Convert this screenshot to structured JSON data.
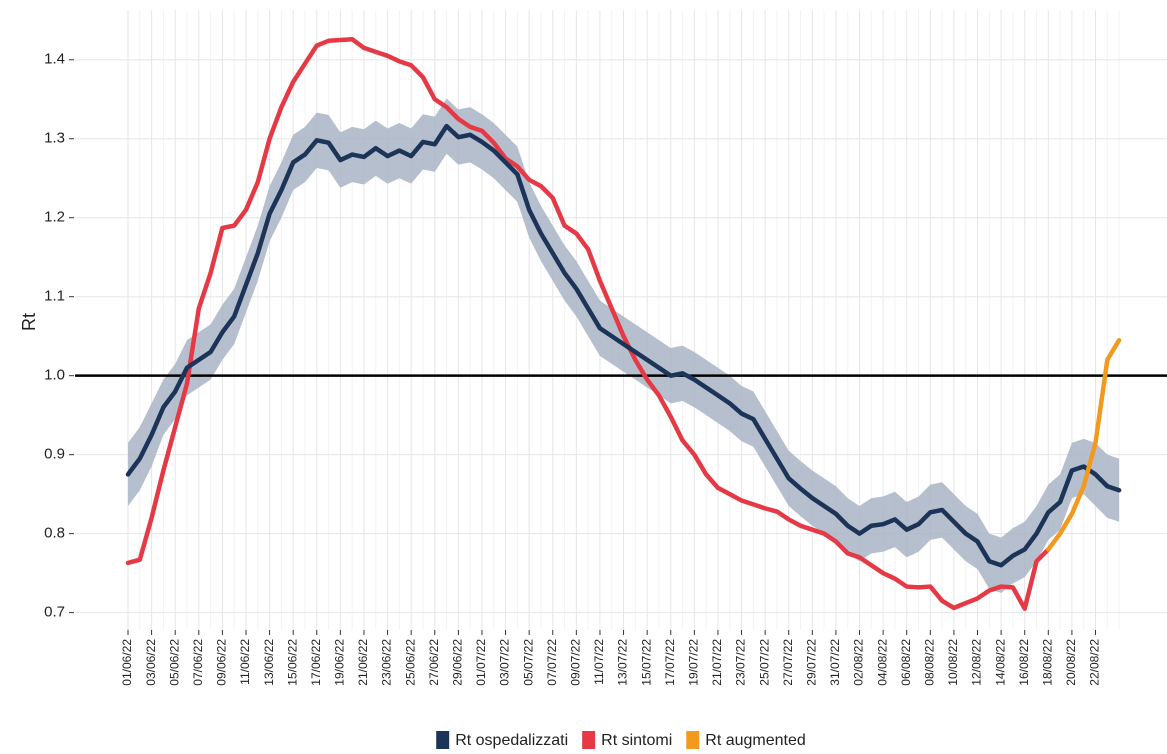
{
  "chart_data": {
    "type": "line",
    "y_label": "Rt",
    "categories": [
      "01/06/22",
      null,
      "03/06/22",
      null,
      "05/06/22",
      null,
      "07/06/22",
      null,
      "09/06/22",
      null,
      "11/06/22",
      null,
      "13/06/22",
      null,
      "15/06/22",
      null,
      "17/06/22",
      null,
      "19/06/22",
      null,
      "21/06/22",
      null,
      "23/06/22",
      null,
      "25/06/22",
      null,
      "27/06/22",
      null,
      "29/06/22",
      null,
      "01/07/22",
      null,
      "03/07/22",
      null,
      "05/07/22",
      null,
      "07/07/22",
      null,
      "09/07/22",
      null,
      "11/07/22",
      null,
      "13/07/22",
      null,
      "15/07/22",
      null,
      "17/07/22",
      null,
      "19/07/22",
      null,
      "21/07/22",
      null,
      "23/07/22",
      null,
      "25/07/22",
      null,
      "27/07/22",
      null,
      "29/07/22",
      null,
      "31/07/22",
      null,
      "02/08/22",
      null,
      "04/08/22",
      null,
      "06/08/22",
      null,
      "08/08/22",
      null,
      "10/08/22",
      null,
      "12/08/22",
      null,
      "14/08/22",
      null,
      "16/08/22",
      null,
      "18/08/22",
      null,
      "20/08/22",
      null,
      "22/08/22",
      null,
      null
    ],
    "series": [
      {
        "name": "Rt ospedalizzati",
        "color": "#1c3458",
        "band_color": "#a9b4c5",
        "values": [
          0.875,
          0.895,
          0.925,
          0.96,
          0.98,
          1.01,
          1.02,
          1.03,
          1.055,
          1.075,
          1.115,
          1.155,
          1.205,
          1.235,
          1.27,
          1.28,
          1.298,
          1.295,
          1.273,
          1.28,
          1.277,
          1.288,
          1.278,
          1.285,
          1.278,
          1.296,
          1.293,
          1.316,
          1.302,
          1.305,
          1.296,
          1.285,
          1.27,
          1.255,
          1.21,
          1.18,
          1.155,
          1.13,
          1.11,
          1.085,
          1.06,
          1.05,
          1.04,
          1.03,
          1.02,
          1.01,
          1.0,
          1.003,
          0.995,
          0.985,
          0.975,
          0.965,
          0.952,
          0.945,
          0.92,
          0.895,
          0.87,
          0.857,
          0.845,
          0.835,
          0.825,
          0.81,
          0.8,
          0.81,
          0.812,
          0.818,
          0.805,
          0.812,
          0.827,
          0.83,
          0.815,
          0.8,
          0.79,
          0.765,
          0.76,
          0.772,
          0.78,
          0.8,
          0.827,
          0.84,
          0.88,
          0.885,
          0.875,
          0.86,
          0.855
        ],
        "lower": [
          0.835,
          0.855,
          0.885,
          0.925,
          0.945,
          0.975,
          0.985,
          0.995,
          1.02,
          1.04,
          1.08,
          1.12,
          1.17,
          1.2,
          1.235,
          1.245,
          1.263,
          1.26,
          1.238,
          1.245,
          1.242,
          1.253,
          1.243,
          1.25,
          1.243,
          1.261,
          1.258,
          1.281,
          1.267,
          1.27,
          1.261,
          1.25,
          1.235,
          1.22,
          1.175,
          1.145,
          1.12,
          1.095,
          1.075,
          1.05,
          1.025,
          1.015,
          1.005,
          0.995,
          0.985,
          0.975,
          0.965,
          0.968,
          0.96,
          0.95,
          0.94,
          0.93,
          0.917,
          0.91,
          0.885,
          0.86,
          0.835,
          0.822,
          0.81,
          0.8,
          0.79,
          0.775,
          0.765,
          0.775,
          0.777,
          0.783,
          0.77,
          0.777,
          0.792,
          0.795,
          0.78,
          0.765,
          0.755,
          0.73,
          0.725,
          0.737,
          0.745,
          0.765,
          0.792,
          0.805,
          0.845,
          0.85,
          0.835,
          0.82,
          0.815
        ],
        "upper": [
          0.915,
          0.935,
          0.965,
          0.995,
          1.015,
          1.045,
          1.055,
          1.065,
          1.09,
          1.11,
          1.15,
          1.19,
          1.24,
          1.27,
          1.305,
          1.315,
          1.333,
          1.33,
          1.308,
          1.315,
          1.312,
          1.323,
          1.313,
          1.32,
          1.313,
          1.331,
          1.328,
          1.351,
          1.337,
          1.34,
          1.331,
          1.32,
          1.305,
          1.29,
          1.245,
          1.215,
          1.19,
          1.165,
          1.145,
          1.12,
          1.095,
          1.085,
          1.075,
          1.065,
          1.055,
          1.045,
          1.035,
          1.038,
          1.03,
          1.02,
          1.01,
          1.0,
          0.987,
          0.98,
          0.955,
          0.93,
          0.905,
          0.892,
          0.88,
          0.87,
          0.86,
          0.845,
          0.835,
          0.845,
          0.847,
          0.853,
          0.84,
          0.847,
          0.862,
          0.865,
          0.85,
          0.835,
          0.825,
          0.8,
          0.795,
          0.807,
          0.815,
          0.835,
          0.862,
          0.875,
          0.915,
          0.92,
          0.915,
          0.9,
          0.895
        ]
      },
      {
        "name": "Rt sintomi",
        "color": "#e63946",
        "values": [
          0.763,
          0.767,
          0.82,
          0.88,
          0.935,
          0.99,
          1.085,
          1.13,
          1.187,
          1.19,
          1.21,
          1.245,
          1.3,
          1.34,
          1.372,
          1.395,
          1.418,
          1.424,
          1.425,
          1.426,
          1.415,
          1.41,
          1.405,
          1.398,
          1.393,
          1.378,
          1.35,
          1.34,
          1.325,
          1.315,
          1.31,
          1.295,
          1.275,
          1.265,
          1.248,
          1.24,
          1.225,
          1.19,
          1.18,
          1.16,
          1.12,
          1.085,
          1.05,
          1.02,
          0.995,
          0.975,
          0.948,
          0.918,
          0.9,
          0.875,
          0.858,
          0.85,
          0.842,
          0.837,
          0.832,
          0.828,
          0.818,
          0.81,
          0.805,
          0.8,
          0.79,
          0.775,
          0.77,
          0.76,
          0.75,
          0.743,
          0.733,
          0.732,
          0.733,
          0.715,
          0.706,
          0.712,
          0.718,
          0.728,
          0.733,
          0.732,
          0.705,
          0.765,
          0.78,
          null,
          null,
          null,
          null,
          null,
          null
        ]
      },
      {
        "name": "Rt augmented",
        "color": "#f39a1e",
        "values": [
          null,
          null,
          null,
          null,
          null,
          null,
          null,
          null,
          null,
          null,
          null,
          null,
          null,
          null,
          null,
          null,
          null,
          null,
          null,
          null,
          null,
          null,
          null,
          null,
          null,
          null,
          null,
          null,
          null,
          null,
          null,
          null,
          null,
          null,
          null,
          null,
          null,
          null,
          null,
          null,
          null,
          null,
          null,
          null,
          null,
          null,
          null,
          null,
          null,
          null,
          null,
          null,
          null,
          null,
          null,
          null,
          null,
          null,
          null,
          null,
          null,
          null,
          null,
          null,
          null,
          null,
          null,
          null,
          null,
          null,
          null,
          null,
          null,
          null,
          null,
          null,
          null,
          null,
          0.78,
          0.8,
          0.825,
          0.86,
          0.915,
          1.02,
          1.045
        ]
      }
    ],
    "ylim": [
      0.678,
      1.463
    ],
    "yticks": [
      0.7,
      0.8,
      0.9,
      {
        "value": 1,
        "label": "1.0"
      },
      1.1,
      1.2,
      1.3,
      1.4
    ],
    "hline": 1,
    "grid": true,
    "legend": "bottom"
  }
}
